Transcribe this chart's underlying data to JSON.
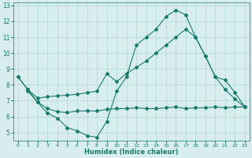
{
  "curve1_x": [
    0,
    1,
    2,
    3,
    4,
    5,
    6,
    7,
    8,
    9,
    10,
    11,
    12,
    13,
    14,
    15,
    16,
    17,
    18,
    19,
    20,
    21,
    22,
    23
  ],
  "curve1_y": [
    8.5,
    7.7,
    6.9,
    6.2,
    5.9,
    5.3,
    5.1,
    4.8,
    4.7,
    5.7,
    7.6,
    8.5,
    10.5,
    11.0,
    11.5,
    12.3,
    12.7,
    12.4,
    11.0,
    9.8,
    8.5,
    8.3,
    7.5,
    6.6
  ],
  "curve2_x": [
    0,
    1,
    2,
    3,
    4,
    5,
    6,
    7,
    8,
    9,
    10,
    11,
    12,
    13,
    14,
    15,
    16,
    17,
    18,
    19,
    20,
    21,
    22,
    23
  ],
  "curve2_y": [
    8.5,
    7.7,
    7.15,
    7.25,
    7.3,
    7.35,
    7.4,
    7.5,
    7.6,
    8.7,
    8.2,
    8.7,
    9.1,
    9.5,
    10.0,
    10.5,
    11.0,
    11.5,
    11.0,
    9.8,
    8.5,
    7.7,
    7.1,
    6.6
  ],
  "curve3_x": [
    1,
    2,
    3,
    4,
    5,
    6,
    7,
    8,
    9,
    10,
    11,
    12,
    13,
    14,
    15,
    16,
    17,
    18,
    19,
    20,
    21,
    22,
    23
  ],
  "curve3_y": [
    7.6,
    6.9,
    6.5,
    6.3,
    6.25,
    6.35,
    6.35,
    6.35,
    6.45,
    6.5,
    6.5,
    6.55,
    6.5,
    6.5,
    6.55,
    6.6,
    6.5,
    6.55,
    6.55,
    6.6,
    6.55,
    6.6,
    6.6
  ],
  "color": "#1a7a6e",
  "bg_color": "#d8eeee",
  "grid_color": "#b0d8d8",
  "xlabel": "Humidex (Indice chaleur)",
  "ylim": [
    4.5,
    13.2
  ],
  "xlim": [
    -0.5,
    23.5
  ],
  "yticks": [
    5,
    6,
    7,
    8,
    9,
    10,
    11,
    12,
    13
  ],
  "xticks": [
    0,
    1,
    2,
    3,
    4,
    5,
    6,
    7,
    8,
    9,
    10,
    11,
    12,
    13,
    14,
    15,
    16,
    17,
    18,
    19,
    20,
    21,
    22,
    23
  ]
}
